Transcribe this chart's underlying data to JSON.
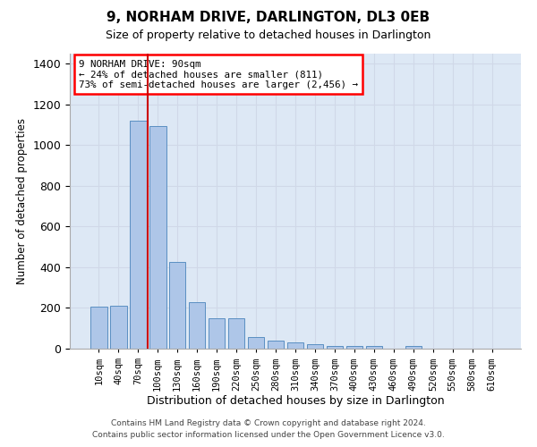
{
  "title": "9, NORHAM DRIVE, DARLINGTON, DL3 0EB",
  "subtitle": "Size of property relative to detached houses in Darlington",
  "xlabel": "Distribution of detached houses by size in Darlington",
  "ylabel": "Number of detached properties",
  "categories": [
    "10sqm",
    "40sqm",
    "70sqm",
    "100sqm",
    "130sqm",
    "160sqm",
    "190sqm",
    "220sqm",
    "250sqm",
    "280sqm",
    "310sqm",
    "340sqm",
    "370sqm",
    "400sqm",
    "430sqm",
    "460sqm",
    "490sqm",
    "520sqm",
    "550sqm",
    "580sqm",
    "610sqm"
  ],
  "values": [
    207,
    210,
    1120,
    1095,
    425,
    230,
    148,
    148,
    57,
    38,
    30,
    22,
    13,
    15,
    15,
    0,
    12,
    0,
    0,
    0,
    0
  ],
  "bar_color": "#aec6e8",
  "bar_edge_color": "#5a8fc2",
  "grid_color": "#d0d8e8",
  "background_color": "#dde8f5",
  "vline_x_idx": 2.5,
  "vline_color": "#cc0000",
  "annotation_text": "9 NORHAM DRIVE: 90sqm\n← 24% of detached houses are smaller (811)\n73% of semi-detached houses are larger (2,456) →",
  "footer1": "Contains HM Land Registry data © Crown copyright and database right 2024.",
  "footer2": "Contains public sector information licensed under the Open Government Licence v3.0.",
  "ylim": [
    0,
    1450
  ],
  "yticks": [
    0,
    200,
    400,
    600,
    800,
    1000,
    1200,
    1400
  ]
}
